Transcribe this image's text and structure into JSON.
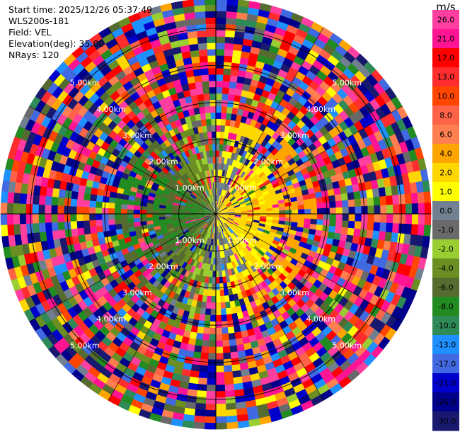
{
  "header": {
    "start_time": "Start time: 2025/12/26 05:37:49",
    "instrument": "WLS200s-181",
    "field": "Field: VEL",
    "elevation": "Elevation(deg): 35.00",
    "nrays": "NRays: 120"
  },
  "chart_data": {
    "type": "heatmap",
    "projection": "polar-ppi",
    "field": "VEL",
    "units": "m/s",
    "n_rays": 120,
    "elevation_deg": 35.0,
    "range_rings_km": [
      1.0,
      2.0,
      3.0,
      4.0,
      5.0
    ],
    "range_ring_labels": [
      "1.00km",
      "2.00km",
      "3.00km",
      "4.00km",
      "5.00km"
    ],
    "ring_label_bearings_deg": [
      45,
      135,
      225,
      315
    ],
    "colorbar": {
      "unit_label": "m/s",
      "ticks": [
        "26.0",
        "21.0",
        "17.0",
        "13.0",
        "10.0",
        "8.0",
        "6.0",
        "4.0",
        "2.0",
        "1.0",
        "0.0",
        "-1.0",
        "-2.0",
        "-4.0",
        "-6.0",
        "-8.0",
        "-10.0",
        "-13.0",
        "-17.0",
        "-21.0",
        "-26.0",
        "-30.0"
      ],
      "bins": [
        {
          "range": [
            26,
            30
          ],
          "color": "#ff3fa0"
        },
        {
          "range": [
            21,
            26
          ],
          "color": "#ff1493"
        },
        {
          "range": [
            17,
            21
          ],
          "color": "#ff0000"
        },
        {
          "range": [
            13,
            17
          ],
          "color": "#ff2d2d"
        },
        {
          "range": [
            10,
            13
          ],
          "color": "#ff4500"
        },
        {
          "range": [
            8,
            10
          ],
          "color": "#ff6347"
        },
        {
          "range": [
            6,
            8
          ],
          "color": "#ff7f50"
        },
        {
          "range": [
            4,
            6
          ],
          "color": "#ffa500"
        },
        {
          "range": [
            2,
            4
          ],
          "color": "#ffd700"
        },
        {
          "range": [
            1,
            2
          ],
          "color": "#ffff00"
        },
        {
          "range": [
            0,
            1
          ],
          "color": "#708090"
        },
        {
          "range": [
            -1,
            0
          ],
          "color": "#696969"
        },
        {
          "range": [
            -2,
            -1
          ],
          "color": "#9acd32"
        },
        {
          "range": [
            -4,
            -2
          ],
          "color": "#6b8e23"
        },
        {
          "range": [
            -6,
            -4
          ],
          "color": "#556b2f"
        },
        {
          "range": [
            -8,
            -6
          ],
          "color": "#228b22"
        },
        {
          "range": [
            -10,
            -8
          ],
          "color": "#2e8b57"
        },
        {
          "range": [
            -13,
            -10
          ],
          "color": "#1e90ff"
        },
        {
          "range": [
            -17,
            -13
          ],
          "color": "#4169e1"
        },
        {
          "range": [
            -21,
            -17
          ],
          "color": "#0000cd"
        },
        {
          "range": [
            -26,
            -21
          ],
          "color": "#00008b"
        },
        {
          "range": [
            -30,
            -26
          ],
          "color": "#191970"
        }
      ]
    },
    "dominant_pattern": {
      "positive_sector_bearing_deg": 90,
      "negative_sector_bearing_deg": 270,
      "note_near_range": "yellow/orange values east-southeast, green values west"
    }
  }
}
